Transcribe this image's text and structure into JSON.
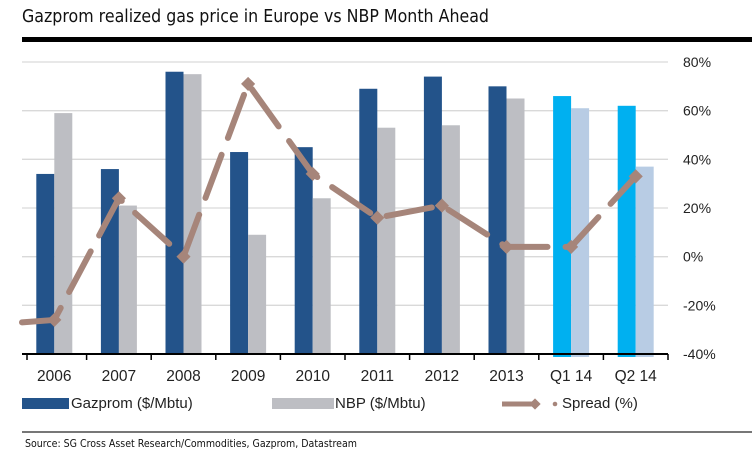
{
  "title": "Gazprom realized gas price in Europe vs NBP Month Ahead",
  "source": "Source: SG Cross Asset Research/Commodities, Gazprom, Datastream",
  "chart_data": {
    "type": "bar",
    "title": "Gazprom realized gas price in Europe vs NBP Month Ahead",
    "categories": [
      "2006",
      "2007",
      "2008",
      "2009",
      "2010",
      "2011",
      "2012",
      "2013",
      "Q1 14",
      "Q2 14"
    ],
    "series": [
      {
        "name": "Gazprom ($/Mbtu)",
        "type": "bar",
        "axis": "left",
        "values": [
          7.4,
          7.6,
          11.6,
          8.3,
          8.5,
          10.9,
          11.4,
          11.0,
          10.6,
          10.2
        ],
        "color": "#23538A",
        "forecast_color": "#00B0F0"
      },
      {
        "name": "NBP ($/Mbtu)",
        "type": "bar",
        "axis": "left",
        "values": [
          9.9,
          6.1,
          11.5,
          4.9,
          6.4,
          9.3,
          9.4,
          10.5,
          10.1,
          7.7
        ],
        "color": "#BDBEC3",
        "forecast_color": "#B8CCE4"
      },
      {
        "name": "Spread (%)",
        "type": "line",
        "axis": "right",
        "values": [
          -26,
          24,
          0,
          71,
          34,
          16,
          21,
          4,
          4,
          33
        ],
        "start_value": -27,
        "color": "#A6857A",
        "style": "dashed"
      }
    ],
    "forecast_categories": [
      "Q1 14",
      "Q2 14"
    ],
    "left_axis": {
      "visible": false,
      "ylim": [
        0,
        12
      ]
    },
    "right_axis": {
      "ticks": [
        "80%",
        "60%",
        "40%",
        "20%",
        "0%",
        "-20%",
        "-40%"
      ],
      "ylim": [
        -40,
        80
      ],
      "label": ""
    },
    "grid": true,
    "legend": {
      "position": "bottom",
      "entries": [
        "Gazprom ($/Mbtu)",
        "NBP ($/Mbtu)",
        "Spread (%)"
      ]
    }
  }
}
